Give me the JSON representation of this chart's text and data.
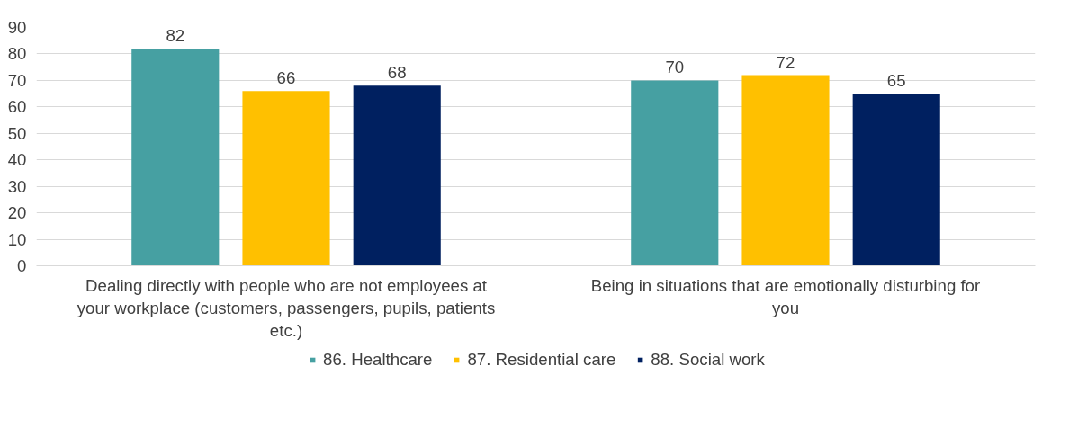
{
  "chart_data": {
    "type": "bar",
    "categories": [
      "Dealing directly with people who are not employees at your workplace (customers, passengers, pupils, patients etc.)",
      "Being in situations that are emotionally disturbing for you"
    ],
    "series": [
      {
        "name": "86. Healthcare",
        "color": "#46a0a2",
        "values": [
          82,
          70
        ]
      },
      {
        "name": "87. Residential care",
        "color": "#ffc000",
        "values": [
          66,
          72
        ]
      },
      {
        "name": "88. Social work",
        "color": "#002060",
        "values": [
          68,
          65
        ]
      }
    ],
    "ylim": [
      0,
      90
    ],
    "yticks": [
      0,
      10,
      20,
      30,
      40,
      50,
      60,
      70,
      80,
      90
    ],
    "grid": "y",
    "legend": "bottom",
    "data_labels": true
  }
}
